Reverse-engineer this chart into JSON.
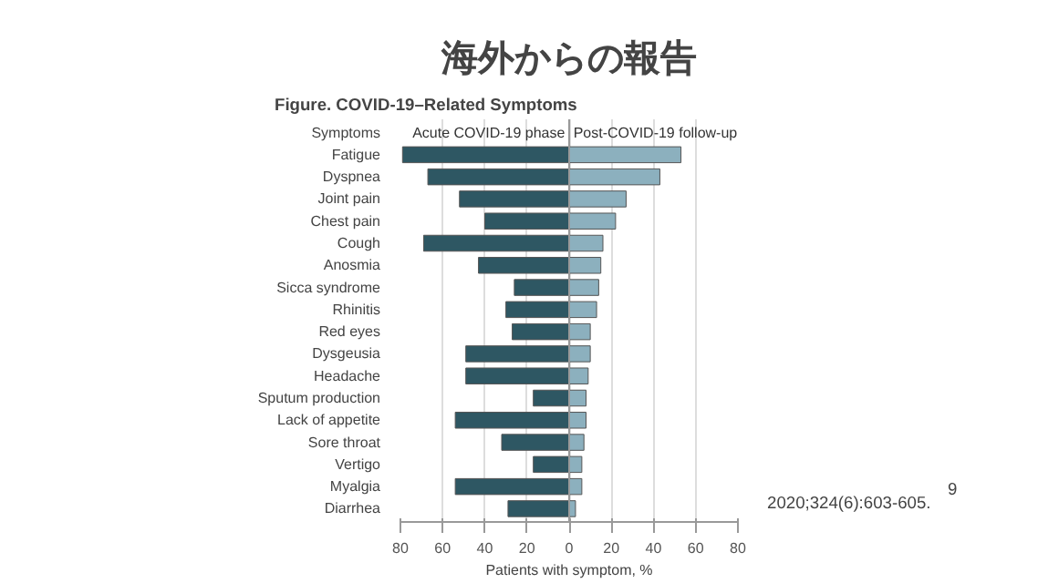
{
  "chart_data": {
    "type": "bar",
    "orientation": "horizontal",
    "stacked": true,
    "title": "海外からの報告",
    "subtitle": "Figure. COVID-19–Related Symptoms",
    "ylabel": "Symptoms",
    "xlabel": "Patients with symptom, %",
    "categories": [
      "Fatigue",
      "Dyspnea",
      "Joint pain",
      "Chest pain",
      "Cough",
      "Anosmia",
      "Sicca syndrome",
      "Rhinitis",
      "Red eyes",
      "Dysgeusia",
      "Headache",
      "Sputum production",
      "Lack of appetite",
      "Sore throat",
      "Vertigo",
      "Myalgia",
      "Diarrhea"
    ],
    "series": [
      {
        "name": "Acute COVID-19 phase",
        "color": "#2e5763",
        "values": [
          -79,
          -67,
          -52,
          -40,
          -69,
          -43,
          -26,
          -30,
          -27,
          -49,
          -49,
          -17,
          -54,
          -32,
          -17,
          -54,
          -29
        ]
      },
      {
        "name": "Post-COVID-19 follow-up",
        "color": "#8cb0be",
        "values": [
          53,
          43,
          27,
          22,
          16,
          15,
          14,
          13,
          10,
          10,
          9,
          8,
          8,
          7,
          6,
          6,
          3
        ]
      }
    ],
    "xlim": [
      -80,
      80
    ],
    "xticks": [
      {
        "value": -80,
        "label": "80"
      },
      {
        "value": -60,
        "label": "60"
      },
      {
        "value": -40,
        "label": "40"
      },
      {
        "value": -20,
        "label": "20"
      },
      0,
      20,
      40,
      60,
      80
    ],
    "grid": "x",
    "annotations": [
      "2020;324(6):603-605.",
      "9"
    ]
  }
}
